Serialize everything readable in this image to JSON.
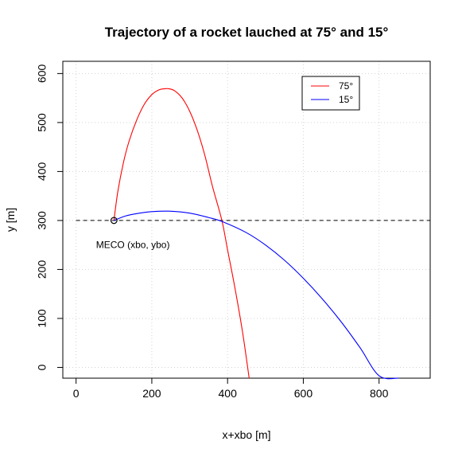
{
  "chart_data": {
    "type": "line",
    "title": "Trajectory of a rocket lauched at 75° and 15°",
    "xlabel": "x+xbo [m]",
    "ylabel": "y [m]",
    "xlim": [
      -35,
      935
    ],
    "ylim": [
      -22,
      625
    ],
    "x_ticks": [
      0,
      200,
      400,
      600,
      800
    ],
    "y_ticks": [
      0,
      100,
      200,
      300,
      400,
      500,
      600
    ],
    "grid": true,
    "legend_position": "top-right",
    "legend": [
      "75°",
      "15°"
    ],
    "series": [
      {
        "name": "75°",
        "color": "#ff0000",
        "x": [
          100,
          110,
          125,
          140,
          160,
          180,
          200,
          220,
          235,
          245,
          260,
          280,
          300,
          320,
          340,
          360,
          385,
          400,
          420,
          440,
          457
        ],
        "y": [
          300,
          358,
          418,
          462,
          505,
          537,
          557,
          567,
          569,
          569,
          565,
          550,
          523,
          484,
          433,
          370,
          300,
          240,
          160,
          70,
          -22
        ]
      },
      {
        "name": "15°",
        "color": "#0000ff",
        "x": [
          100,
          130,
          160,
          200,
          245,
          300,
          350,
          385,
          450,
          500,
          550,
          600,
          650,
          700,
          750,
          800,
          852
        ],
        "y": [
          300,
          309,
          314,
          318,
          319,
          315,
          306,
          298,
          275,
          250,
          219,
          182,
          140,
          93,
          40,
          -17,
          -22
        ]
      }
    ],
    "reference_line": {
      "y": 300,
      "x_range": [
        0,
        935
      ],
      "style": "dashed",
      "color": "#000000"
    },
    "marker": {
      "x": 100,
      "y": 300,
      "shape": "open-circle"
    },
    "annotation": {
      "text": "MECO (xbo, ybo)",
      "x": 150,
      "y": 250
    }
  }
}
